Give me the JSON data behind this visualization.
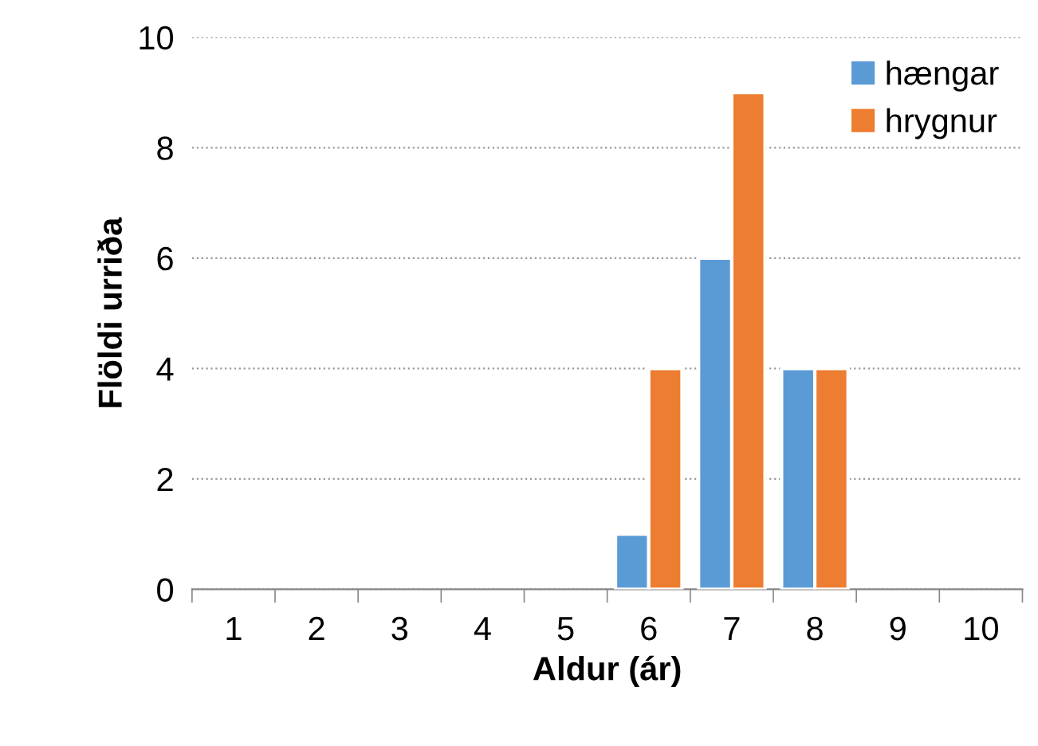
{
  "chart_data": {
    "type": "bar",
    "xlabel": "Aldur (ár)",
    "ylabel": "Flöldi urriða",
    "categories": [
      "1",
      "2",
      "3",
      "4",
      "5",
      "6",
      "7",
      "8",
      "9",
      "10"
    ],
    "series": [
      {
        "name": "hængar",
        "color": "#5b9bd5",
        "values": [
          0,
          0,
          0,
          0,
          0,
          1,
          6,
          4,
          0,
          0
        ]
      },
      {
        "name": "hrygnur",
        "color": "#ed7d31",
        "values": [
          0,
          0,
          0,
          0,
          0,
          4,
          9,
          4,
          0,
          0
        ]
      }
    ],
    "ylim": [
      0,
      10
    ],
    "yticks": [
      0,
      2,
      4,
      6,
      8,
      10
    ],
    "grid": "y",
    "legend": "top right"
  }
}
